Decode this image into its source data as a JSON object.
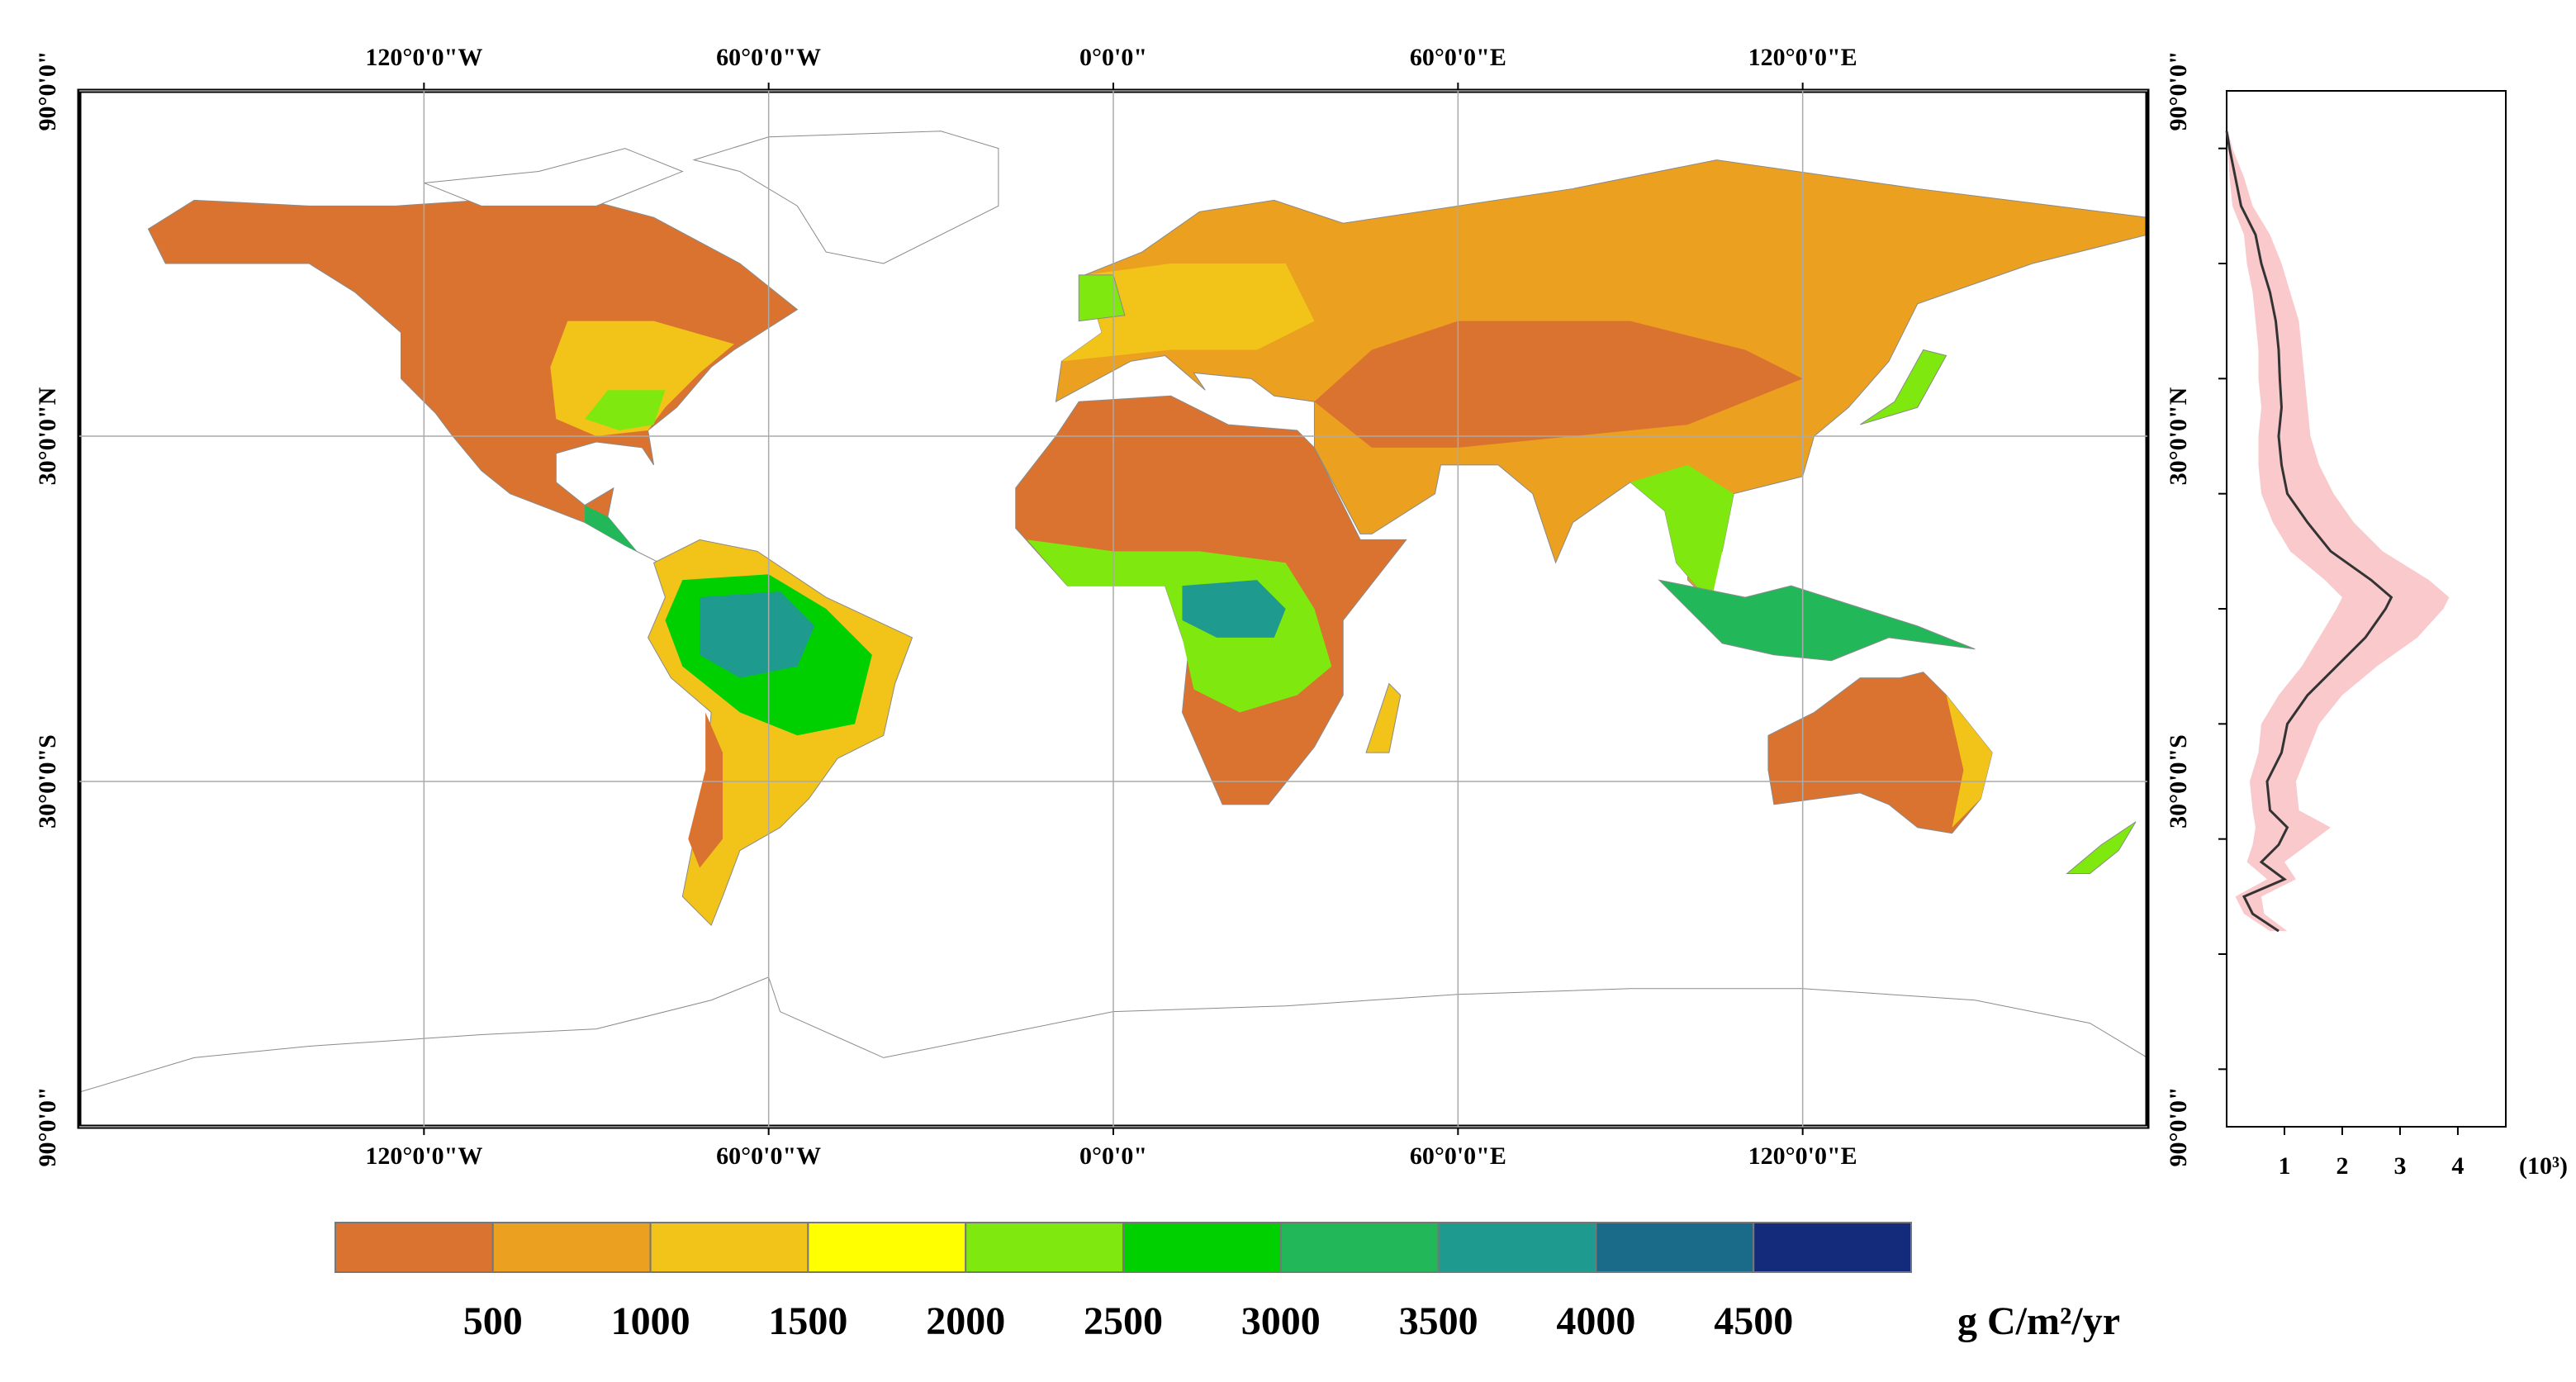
{
  "map": {
    "xlim": [
      -180,
      180
    ],
    "ylim": [
      -90,
      90
    ],
    "xticks": [
      {
        "value": -120,
        "label": "120°0'0\"W"
      },
      {
        "value": -60,
        "label": "60°0'0\"W"
      },
      {
        "value": 0,
        "label": "0°0'0\""
      },
      {
        "value": 60,
        "label": "60°0'0\"E"
      },
      {
        "value": 120,
        "label": "120°0'0\"E"
      }
    ],
    "yticks": [
      {
        "value": 90,
        "label": "90°0'0\""
      },
      {
        "value": 30,
        "label": "30°0'0\"N"
      },
      {
        "value": -30,
        "label": "30°0'0\"S"
      },
      {
        "value": -90,
        "label": "90°0'0\""
      }
    ],
    "grid": true
  },
  "colorbar": {
    "lim": [
      0,
      5000
    ],
    "colors": [
      "#d9732f",
      "#eba020",
      "#f2c41a",
      "#ffff00",
      "#7fe80f",
      "#00d000",
      "#22b85a",
      "#1e9a8f",
      "#1a6a8a",
      "#142a7a"
    ],
    "ticks": [
      500,
      1000,
      1500,
      2000,
      2500,
      3000,
      3500,
      4000,
      4500
    ],
    "unit": "g C/m²/yr"
  },
  "chart_data": {
    "type": "line",
    "xlim": [
      0,
      4.83
    ],
    "xticks": [
      1,
      2,
      3,
      4
    ],
    "x_unit": "(10³)",
    "ylim": [
      -90,
      90
    ],
    "yticks": [
      80,
      60,
      40,
      20,
      0,
      -20,
      -40,
      -60,
      -80
    ],
    "y": [
      83,
      80,
      75,
      70,
      65,
      60,
      55,
      50,
      45,
      40,
      35,
      30,
      25,
      20,
      15,
      10,
      5,
      2,
      0,
      -5,
      -10,
      -15,
      -20,
      -25,
      -30,
      -35,
      -38,
      -41,
      -44,
      -47,
      -50,
      -53,
      -56
    ],
    "series": [
      {
        "color": "#333333",
        "values": [
          0.0,
          0.05,
          0.15,
          0.25,
          0.5,
          0.6,
          0.75,
          0.85,
          0.9,
          0.92,
          0.95,
          0.9,
          0.95,
          1.05,
          1.4,
          1.8,
          2.5,
          2.85,
          2.75,
          2.4,
          1.9,
          1.4,
          1.05,
          0.95,
          0.7,
          0.75,
          1.05,
          0.9,
          0.6,
          1.0,
          0.3,
          0.45,
          0.9
        ]
      }
    ],
    "band": {
      "color": "#f9c9cc",
      "upper": [
        0.02,
        0.1,
        0.3,
        0.45,
        0.75,
        0.95,
        1.1,
        1.25,
        1.3,
        1.35,
        1.4,
        1.45,
        1.6,
        1.85,
        2.2,
        2.7,
        3.5,
        3.85,
        3.75,
        3.3,
        2.6,
        2.0,
        1.6,
        1.4,
        1.2,
        1.25,
        1.8,
        1.4,
        1.0,
        1.2,
        0.6,
        0.65,
        1.05
      ],
      "lower": [
        0.0,
        0.02,
        0.05,
        0.1,
        0.3,
        0.35,
        0.45,
        0.5,
        0.55,
        0.55,
        0.6,
        0.55,
        0.55,
        0.6,
        0.8,
        1.1,
        1.7,
        2.0,
        1.9,
        1.6,
        1.3,
        0.9,
        0.6,
        0.55,
        0.4,
        0.45,
        0.5,
        0.45,
        0.35,
        0.7,
        0.15,
        0.3,
        0.75
      ]
    }
  }
}
